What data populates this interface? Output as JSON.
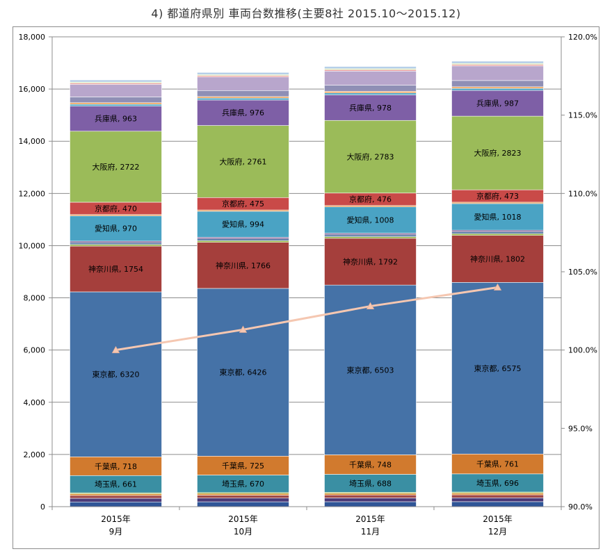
{
  "title": "4) 都道府県別 車両台数推移(主要8社 2015.10～2015.12)",
  "chart_data": {
    "type": "bar",
    "stacked": true,
    "categories": [
      [
        "2015年",
        "9月"
      ],
      [
        "2015年",
        "10月"
      ],
      [
        "2015年",
        "11月"
      ],
      [
        "2015年",
        "12月"
      ]
    ],
    "y_left": {
      "min": 0,
      "max": 18000,
      "step": 2000,
      "ticks": [
        "0",
        "2,000",
        "4,000",
        "6,000",
        "8,000",
        "10,000",
        "12,000",
        "14,000",
        "16,000",
        "18,000"
      ]
    },
    "y_right": {
      "min": 90,
      "max": 120,
      "step": 5,
      "ticks": [
        "90.0%",
        "95.0%",
        "100.0%",
        "105.0%",
        "110.0%",
        "115.0%",
        "120.0%"
      ]
    },
    "grid": true,
    "series": [
      {
        "values": [
          180,
          185,
          188,
          190
        ],
        "color": "#2f5597"
      },
      {
        "values": [
          140,
          142,
          145,
          148
        ],
        "color": "#4b3a78"
      },
      {
        "values": [
          110,
          112,
          114,
          116
        ],
        "color": "#a04a4a"
      },
      {
        "values": [
          60,
          61,
          62,
          63
        ],
        "color": "#e08a2c"
      },
      {
        "values": [
          40,
          41,
          42,
          43
        ],
        "color": "#8fae3f"
      },
      {
        "name": "埼玉県",
        "values": [
          661,
          670,
          688,
          696
        ],
        "color": "#3a8fa3"
      },
      {
        "name": "千葉県",
        "values": [
          718,
          725,
          748,
          761
        ],
        "color": "#d17a2e"
      },
      {
        "name": "東京都",
        "values": [
          6320,
          6426,
          6503,
          6575
        ],
        "color": "#4572a7"
      },
      {
        "name": "神奈川県",
        "values": [
          1754,
          1766,
          1792,
          1802
        ],
        "color": "#a53f3c"
      },
      {
        "values": [
          60,
          61,
          62,
          63
        ],
        "color": "#8fae3f"
      },
      {
        "values": [
          70,
          71,
          72,
          73
        ],
        "color": "#5a7aa6"
      },
      {
        "values": [
          60,
          61,
          62,
          63
        ],
        "color": "#7a5f96"
      },
      {
        "name": "愛知県",
        "values": [
          970,
          994,
          1008,
          1018
        ],
        "color": "#4aa3c4"
      },
      {
        "values": [
          50,
          52,
          53,
          54
        ],
        "color": "#e59650"
      },
      {
        "name": "京都府",
        "values": [
          470,
          475,
          476,
          473
        ],
        "color": "#c94a48"
      },
      {
        "name": "大阪府",
        "values": [
          2722,
          2761,
          2783,
          2823
        ],
        "color": "#9bbb59"
      },
      {
        "name": "兵庫県",
        "values": [
          963,
          976,
          978,
          987
        ],
        "color": "#7e5fa6"
      },
      {
        "values": [
          70,
          72,
          74,
          75
        ],
        "color": "#4aa3c4"
      },
      {
        "values": [
          60,
          61,
          62,
          63
        ],
        "color": "#f0a35a"
      },
      {
        "values": [
          220,
          230,
          235,
          240
        ],
        "color": "#8f8fb5"
      },
      {
        "values": [
          480,
          520,
          540,
          560
        ],
        "color": "#b8a6cc"
      },
      {
        "values": [
          50,
          51,
          52,
          53
        ],
        "color": "#e89898"
      },
      {
        "values": [
          40,
          41,
          42,
          43
        ],
        "color": "#d4e3a7"
      },
      {
        "values": [
          80,
          82,
          84,
          86
        ],
        "color": "#b5cfe8"
      }
    ],
    "line": {
      "axis": "right",
      "values": [
        100.0,
        101.3,
        102.8,
        104.0
      ],
      "color": "#f5c7b1",
      "marker": "triangle"
    }
  }
}
